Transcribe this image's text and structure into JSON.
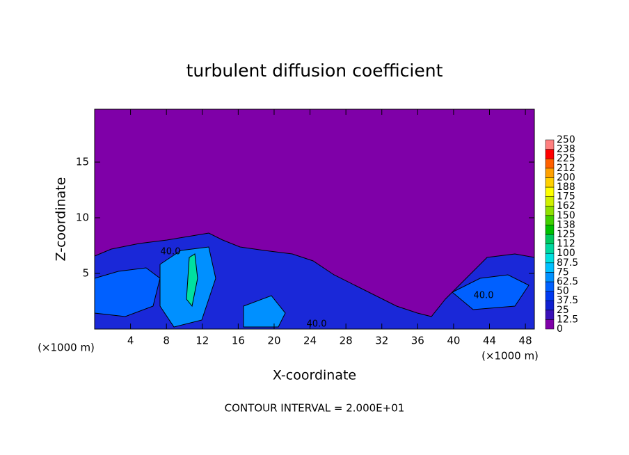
{
  "chart_data": {
    "type": "contour",
    "title": "turbulent diffusion coefficient",
    "x_label": "X-coordinate",
    "y_label": "Z-coordinate",
    "x_unit_left": "(×1000 m)",
    "x_unit_right": "(×1000 m)",
    "footer": "CONTOUR INTERVAL = 2.000E+01",
    "xlim": [
      0,
      49
    ],
    "ylim": [
      0,
      19.75
    ],
    "xticks": [
      4,
      8,
      12,
      16,
      20,
      24,
      28,
      32,
      36,
      40,
      44,
      48
    ],
    "yticks": [
      5,
      10,
      15
    ],
    "contour_labels": [
      "40.0",
      "40.0",
      "40.0"
    ],
    "colorbar": {
      "levels": [
        0,
        12.5,
        25,
        37.5,
        50,
        62.5,
        75,
        87.5,
        100,
        {
          "value": 112.5,
          "label": "112"
        },
        125,
        {
          "value": 137.5,
          "label": "138"
        },
        150,
        {
          "value": 162.5,
          "label": "162"
        },
        175,
        {
          "value": 187.5,
          "label": "188"
        },
        200,
        {
          "value": 212.5,
          "label": "212"
        },
        225,
        {
          "value": 237.5,
          "label": "238"
        },
        250
      ],
      "colors": [
        "#7f00a8",
        "#3a10b8",
        "#1020d0",
        "#0038f0",
        "#0060ff",
        "#0090ff",
        "#00c0ff",
        "#00e0e0",
        "#00d8a0",
        "#00c860",
        "#00c000",
        "#40d000",
        "#90e000",
        "#d0f000",
        "#ffff00",
        "#ffd000",
        "#ffa000",
        "#ff6000",
        "#ff0000",
        "#ff8080"
      ]
    }
  }
}
